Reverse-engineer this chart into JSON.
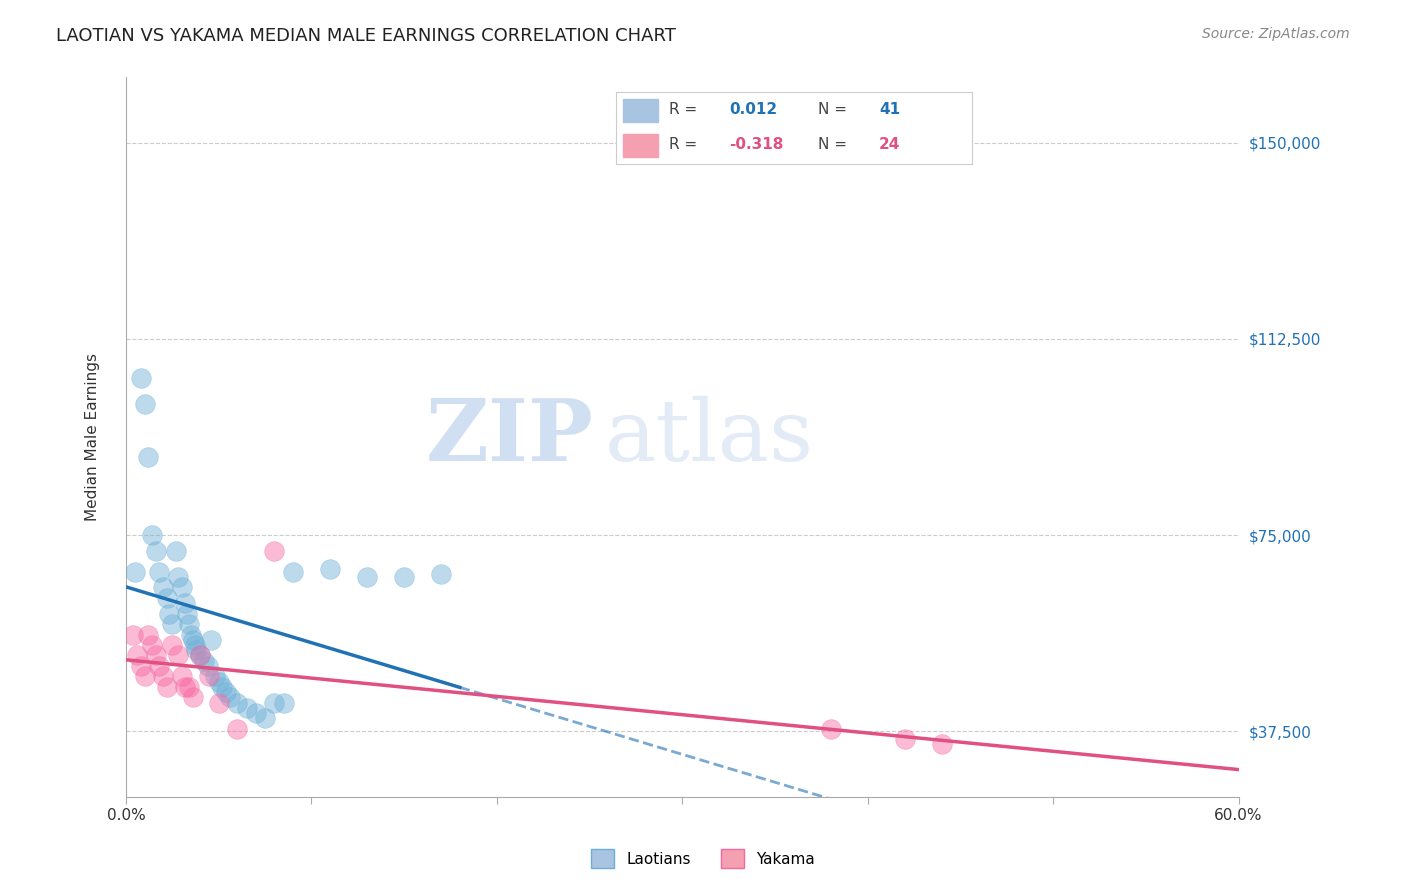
{
  "title": "LAOTIAN VS YAKAMA MEDIAN MALE EARNINGS CORRELATION CHART",
  "source": "Source: ZipAtlas.com",
  "ylabel": "Median Male Earnings",
  "xlim": [
    0.0,
    0.6
  ],
  "ylim": [
    25000,
    162500
  ],
  "yticks": [
    37500,
    75000,
    112500,
    150000
  ],
  "ytick_labels": [
    "$37,500",
    "$75,000",
    "$112,500",
    "$150,000"
  ],
  "laotian_color": "#6baed6",
  "yakama_color": "#f768a1",
  "blue_line_color": "#2171b5",
  "pink_line_color": "#e05080",
  "watermark_zip": "ZIP",
  "watermark_atlas": "atlas",
  "laotian_x": [
    0.005,
    0.008,
    0.01,
    0.012,
    0.014,
    0.016,
    0.018,
    0.02,
    0.022,
    0.023,
    0.025,
    0.027,
    0.028,
    0.03,
    0.032,
    0.033,
    0.034,
    0.035,
    0.036,
    0.037,
    0.038,
    0.04,
    0.042,
    0.044,
    0.046,
    0.048,
    0.05,
    0.052,
    0.054,
    0.056,
    0.06,
    0.065,
    0.07,
    0.075,
    0.08,
    0.085,
    0.09,
    0.11,
    0.13,
    0.15,
    0.17
  ],
  "laotian_y": [
    68000,
    105000,
    100000,
    90000,
    75000,
    72000,
    68000,
    65000,
    63000,
    60000,
    58000,
    72000,
    67000,
    65000,
    62000,
    60000,
    58000,
    56000,
    55000,
    54000,
    53000,
    52000,
    51000,
    50000,
    55000,
    48000,
    47000,
    46000,
    45000,
    44000,
    43000,
    42000,
    41000,
    40000,
    43000,
    43000,
    68000,
    68500,
    67000,
    67000,
    67500
  ],
  "yakama_x": [
    0.004,
    0.006,
    0.008,
    0.01,
    0.012,
    0.014,
    0.016,
    0.018,
    0.02,
    0.022,
    0.025,
    0.028,
    0.03,
    0.032,
    0.034,
    0.036,
    0.04,
    0.045,
    0.05,
    0.06,
    0.08,
    0.38,
    0.42,
    0.44
  ],
  "yakama_y": [
    56000,
    52000,
    50000,
    48000,
    56000,
    54000,
    52000,
    50000,
    48000,
    46000,
    54000,
    52000,
    48000,
    46000,
    46000,
    44000,
    52000,
    48000,
    43000,
    38000,
    72000,
    38000,
    36000,
    35000
  ]
}
